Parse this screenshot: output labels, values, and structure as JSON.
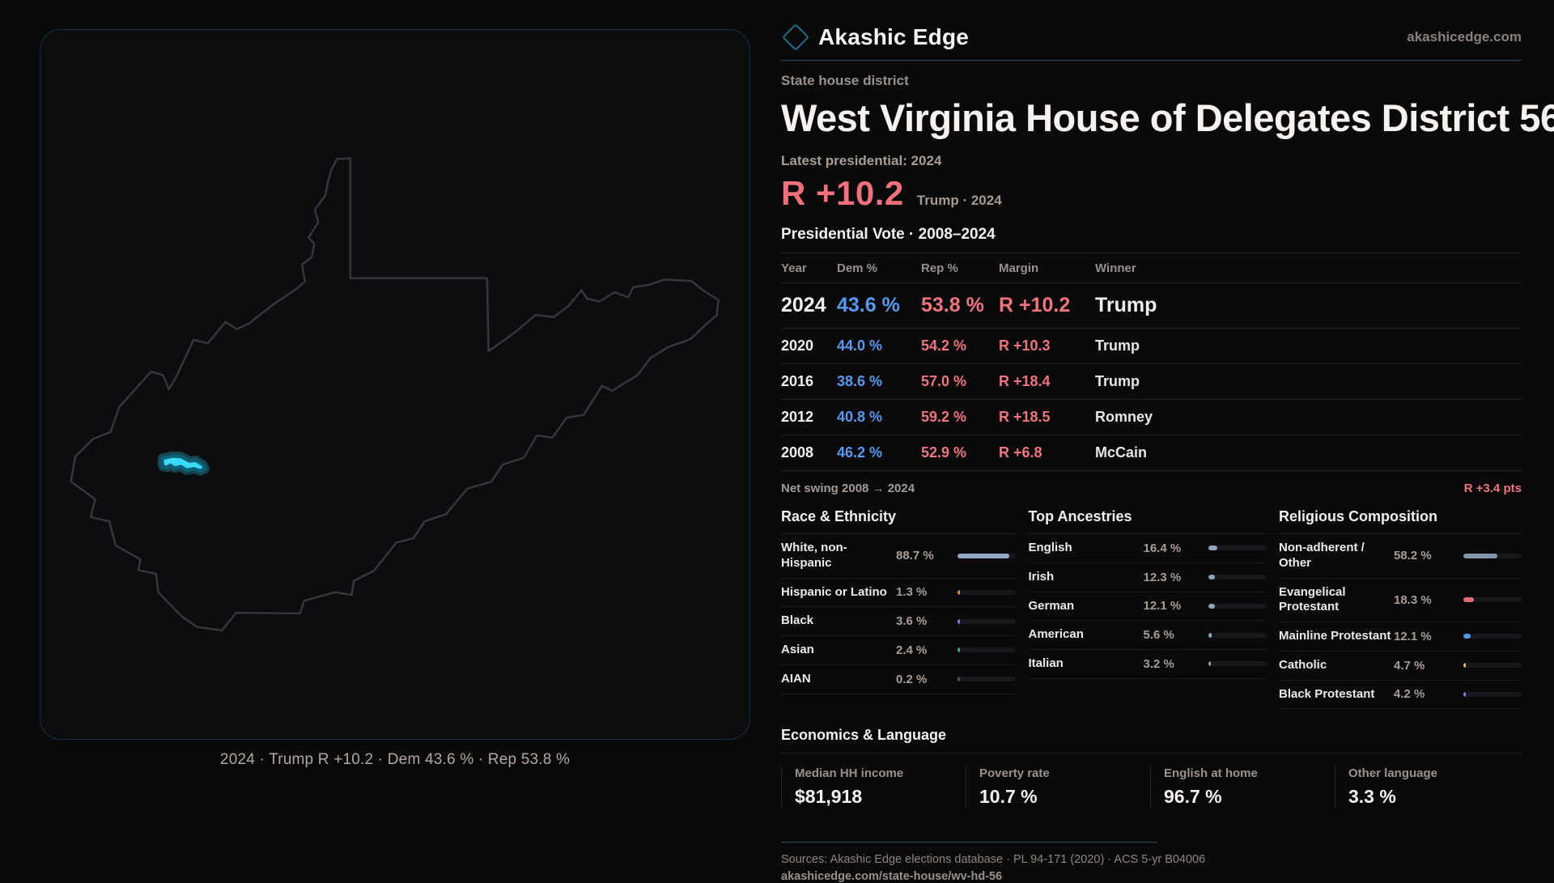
{
  "brand": {
    "name": "Akashic Edge",
    "site": "akashicedge.com",
    "accent": "#35d8f5"
  },
  "map": {
    "caption": "2024 · Trump R +10.2 · Dem 43.6 % · Rep 53.8 %",
    "district_color": "#3ad9f6",
    "outline_color": "#35383b"
  },
  "header": {
    "kicker": "State house district",
    "title": "West Virginia House of Delegates District 56",
    "latest_label": "Latest presidential: 2024",
    "margin_big": "R +10.2",
    "margin_note": "Trump · 2024"
  },
  "table": {
    "title": "Presidential Vote · 2008–2024",
    "columns": [
      "Year",
      "Dem %",
      "Rep %",
      "Margin",
      "Winner"
    ],
    "rows": [
      {
        "year": "2024",
        "dem": "43.6 %",
        "rep": "53.8 %",
        "margin": "R +10.2",
        "winner": "Trump"
      },
      {
        "year": "2020",
        "dem": "44.0 %",
        "rep": "54.2 %",
        "margin": "R +10.3",
        "winner": "Trump"
      },
      {
        "year": "2016",
        "dem": "38.6 %",
        "rep": "57.0 %",
        "margin": "R +18.4",
        "winner": "Trump"
      },
      {
        "year": "2012",
        "dem": "40.8 %",
        "rep": "59.2 %",
        "margin": "R +18.5",
        "winner": "Romney"
      },
      {
        "year": "2008",
        "dem": "46.2 %",
        "rep": "52.9 %",
        "margin": "R +6.8",
        "winner": "McCain"
      }
    ]
  },
  "net_swing": {
    "label": "Net swing 2008 → 2024",
    "value": "R +3.4 pts"
  },
  "demographics": {
    "race": {
      "title": "Race & Ethnicity",
      "rows": [
        {
          "label": "White, non-Hispanic",
          "value": "88.7 %",
          "pct": 88.7,
          "color": "#93a7c4"
        },
        {
          "label": "Hispanic or Latino",
          "value": "1.3 %",
          "pct": 1.3,
          "color": "#d9912e"
        },
        {
          "label": "Black",
          "value": "3.6 %",
          "pct": 3.6,
          "color": "#8b7ce0"
        },
        {
          "label": "Asian",
          "value": "2.4 %",
          "pct": 2.4,
          "color": "#2eb886"
        },
        {
          "label": "AIAN",
          "value": "0.2 %",
          "pct": 0.2,
          "color": "#50565e"
        }
      ]
    },
    "ancestries": {
      "title": "Top Ancestries",
      "rows": [
        {
          "label": "English",
          "value": "16.4 %",
          "pct": 16.4,
          "color": "#8fa3bd"
        },
        {
          "label": "Irish",
          "value": "12.3 %",
          "pct": 12.3,
          "color": "#8fa3bd"
        },
        {
          "label": "German",
          "value": "12.1 %",
          "pct": 12.1,
          "color": "#8fa3bd"
        },
        {
          "label": "American",
          "value": "5.6 %",
          "pct": 5.6,
          "color": "#8fa3bd"
        },
        {
          "label": "Italian",
          "value": "3.2 %",
          "pct": 3.2,
          "color": "#8fa3bd"
        }
      ]
    },
    "religion": {
      "title": "Religious Composition",
      "rows": [
        {
          "label": "Non-adherent / Other",
          "value": "58.2 %",
          "pct": 58.2,
          "color": "#8494a8"
        },
        {
          "label": "Evangelical Protestant",
          "value": "18.3 %",
          "pct": 18.3,
          "color": "#e06c75"
        },
        {
          "label": "Mainline Protestant",
          "value": "12.1 %",
          "pct": 12.1,
          "color": "#4f97e8"
        },
        {
          "label": "Catholic",
          "value": "4.7 %",
          "pct": 4.7,
          "color": "#e8c23f"
        },
        {
          "label": "Black Protestant",
          "value": "4.2 %",
          "pct": 4.2,
          "color": "#8b7ce0"
        }
      ]
    }
  },
  "economics": {
    "title": "Economics & Language",
    "stats": [
      {
        "label": "Median HH income",
        "value": "$81,918"
      },
      {
        "label": "Poverty rate",
        "value": "10.7 %"
      },
      {
        "label": "English at home",
        "value": "96.7 %"
      },
      {
        "label": "Other language",
        "value": "3.3 %"
      }
    ]
  },
  "footer": {
    "sources": "Sources: Akashic Edge elections database · PL 94-171 (2020) · ACS 5-yr B04006",
    "url": "akashicedge.com/state-house/wv-hd-56"
  }
}
